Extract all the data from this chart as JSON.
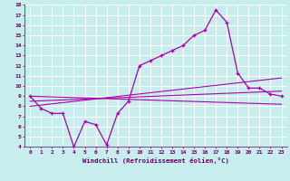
{
  "xlabel": "Windchill (Refroidissement éolien,°C)",
  "xlim": [
    -0.5,
    23.5
  ],
  "ylim": [
    4,
    18
  ],
  "xticks": [
    0,
    1,
    2,
    3,
    4,
    5,
    6,
    7,
    8,
    9,
    10,
    11,
    12,
    13,
    14,
    15,
    16,
    17,
    18,
    19,
    20,
    21,
    22,
    23
  ],
  "yticks": [
    4,
    5,
    6,
    7,
    8,
    9,
    10,
    11,
    12,
    13,
    14,
    15,
    16,
    17,
    18
  ],
  "bg_color": "#c8eded",
  "grid_color": "#ffffff",
  "line_color": "#aa00aa",
  "line1_x": [
    0,
    1,
    2,
    3,
    4,
    5,
    6,
    7,
    8,
    9,
    10,
    11,
    12,
    13,
    14,
    15,
    16,
    17,
    18,
    19,
    20,
    21,
    22,
    23
  ],
  "line1_y": [
    9.0,
    7.8,
    7.3,
    7.3,
    4.0,
    6.5,
    6.2,
    4.2,
    7.3,
    8.5,
    12.0,
    12.5,
    13.0,
    13.5,
    14.0,
    15.0,
    15.5,
    17.5,
    16.3,
    11.3,
    9.8,
    9.8,
    9.2,
    9.0
  ],
  "smooth1_start": 9.0,
  "smooth1_end": 8.2,
  "smooth2_start": 8.5,
  "smooth2_end": 9.5,
  "smooth3_start": 8.0,
  "smooth3_end": 10.8
}
